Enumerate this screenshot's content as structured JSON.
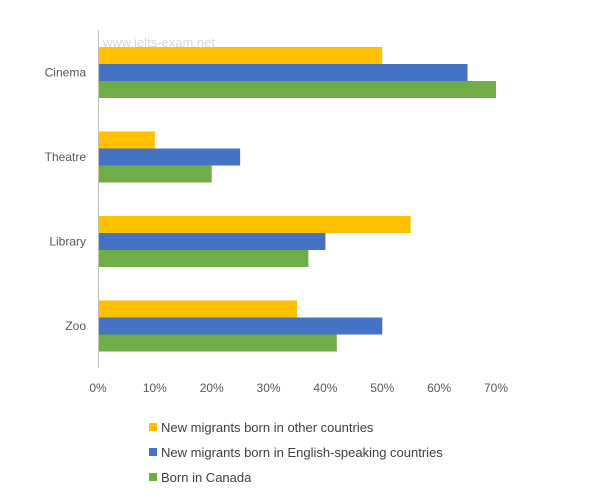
{
  "watermark": "www.ielts-exam.net",
  "chart_data": {
    "type": "bar",
    "orientation": "horizontal",
    "categories": [
      "Cinema",
      "Theatre",
      "Library",
      "Zoo"
    ],
    "series": [
      {
        "name": "New migrants born in other countries",
        "values": [
          50,
          10,
          55,
          35
        ],
        "color": "#ffc000"
      },
      {
        "name": "New migrants born in English-speaking countries",
        "values": [
          65,
          25,
          40,
          50
        ],
        "color": "#4472c4"
      },
      {
        "name": "Born in Canada",
        "values": [
          70,
          20,
          37,
          42
        ],
        "color": "#70ad47"
      }
    ],
    "xlim": [
      0,
      70
    ],
    "x_ticks": [
      0,
      10,
      20,
      30,
      40,
      50,
      60,
      70
    ],
    "x_tick_labels": [
      "0%",
      "10%",
      "20%",
      "30%",
      "40%",
      "50%",
      "60%",
      "70%"
    ],
    "legend_position": "bottom",
    "grid": false
  }
}
